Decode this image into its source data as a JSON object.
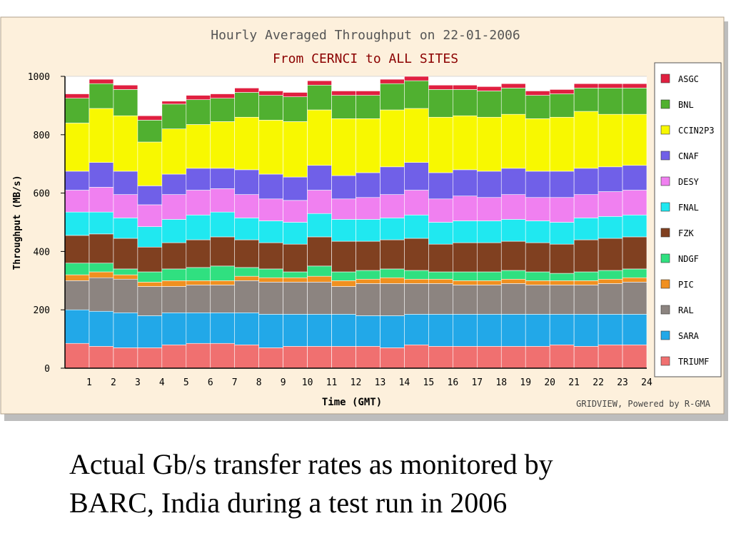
{
  "caption": {
    "line1": "Actual Gb/s transfer rates as monitored by",
    "line2": "BARC, India during a test run in 2006"
  },
  "chart_data": {
    "type": "bar",
    "stacked": true,
    "title": "Hourly Averaged Throughput on 22-01-2006",
    "subtitle": "From CERNCI to ALL SITES",
    "xlabel": "Time (GMT)",
    "ylabel": "Throughput (MB/s)",
    "ylim": [
      0,
      1000
    ],
    "yticks": [
      0,
      200,
      400,
      600,
      800,
      1000
    ],
    "credit": "GRIDVIEW, Powered by R-GMA",
    "grid": true,
    "legend_position": "right",
    "colors": {
      "panel_bg": "#fdf0dc",
      "plot_bg": "#ffffff",
      "title_text": "#555555",
      "subtitle_text": "#8b0000"
    },
    "categories": [
      "1",
      "2",
      "3",
      "4",
      "5",
      "6",
      "7",
      "8",
      "9",
      "10",
      "11",
      "12",
      "13",
      "14",
      "15",
      "16",
      "17",
      "18",
      "19",
      "20",
      "21",
      "22",
      "23",
      "24"
    ],
    "series": [
      {
        "name": "TRIUMF",
        "color": "#f07070",
        "values": [
          85,
          75,
          70,
          70,
          80,
          85,
          85,
          80,
          70,
          75,
          75,
          75,
          75,
          70,
          80,
          75,
          75,
          75,
          75,
          75,
          80,
          75,
          80,
          80
        ]
      },
      {
        "name": "SARA",
        "color": "#22a8e8",
        "values": [
          115,
          120,
          120,
          110,
          110,
          105,
          105,
          110,
          115,
          110,
          110,
          110,
          105,
          110,
          105,
          110,
          110,
          110,
          110,
          110,
          105,
          110,
          105,
          105
        ]
      },
      {
        "name": "RAL",
        "color": "#8c8480",
        "values": [
          100,
          115,
          115,
          100,
          90,
          95,
          95,
          110,
          110,
          110,
          110,
          95,
          110,
          110,
          105,
          105,
          100,
          100,
          105,
          100,
          100,
          100,
          105,
          110
        ]
      },
      {
        "name": "PIC",
        "color": "#f09020",
        "values": [
          20,
          20,
          15,
          15,
          20,
          15,
          15,
          15,
          15,
          15,
          20,
          20,
          15,
          20,
          15,
          15,
          15,
          15,
          15,
          15,
          15,
          15,
          15,
          15
        ]
      },
      {
        "name": "NDGF",
        "color": "#30e080",
        "values": [
          40,
          30,
          20,
          35,
          40,
          45,
          50,
          30,
          30,
          20,
          35,
          30,
          30,
          30,
          30,
          25,
          30,
          30,
          30,
          30,
          25,
          30,
          30,
          30
        ]
      },
      {
        "name": "FZK",
        "color": "#804020",
        "values": [
          95,
          100,
          105,
          85,
          90,
          95,
          100,
          95,
          90,
          95,
          100,
          105,
          100,
          100,
          110,
          95,
          100,
          100,
          100,
          100,
          100,
          110,
          110,
          110
        ]
      },
      {
        "name": "FNAL",
        "color": "#20e8f0",
        "values": [
          80,
          75,
          70,
          70,
          80,
          85,
          85,
          75,
          75,
          75,
          80,
          75,
          75,
          75,
          80,
          75,
          75,
          75,
          75,
          75,
          75,
          75,
          75,
          75
        ]
      },
      {
        "name": "DESY",
        "color": "#f080f0",
        "values": [
          75,
          85,
          80,
          75,
          85,
          85,
          80,
          80,
          75,
          75,
          80,
          70,
          75,
          80,
          85,
          80,
          85,
          80,
          85,
          80,
          85,
          80,
          85,
          85
        ]
      },
      {
        "name": "CNAF",
        "color": "#7060e8",
        "values": [
          65,
          85,
          80,
          65,
          70,
          75,
          70,
          85,
          85,
          80,
          85,
          80,
          85,
          95,
          95,
          90,
          90,
          90,
          90,
          90,
          90,
          90,
          85,
          85
        ]
      },
      {
        "name": "CCIN2P3",
        "color": "#f8f800",
        "values": [
          165,
          185,
          190,
          150,
          155,
          150,
          160,
          180,
          185,
          190,
          190,
          195,
          185,
          195,
          185,
          190,
          185,
          185,
          185,
          180,
          185,
          195,
          180,
          175
        ]
      },
      {
        "name": "BNL",
        "color": "#50b030",
        "values": [
          85,
          85,
          90,
          75,
          85,
          85,
          80,
          85,
          85,
          85,
          85,
          80,
          80,
          90,
          95,
          95,
          90,
          90,
          90,
          80,
          80,
          80,
          90,
          90
        ]
      },
      {
        "name": "ASGC",
        "color": "#e02040",
        "values": [
          15,
          15,
          15,
          15,
          10,
          15,
          15,
          15,
          15,
          15,
          15,
          15,
          15,
          15,
          15,
          15,
          15,
          15,
          15,
          15,
          15,
          15,
          15,
          15
        ]
      }
    ]
  }
}
